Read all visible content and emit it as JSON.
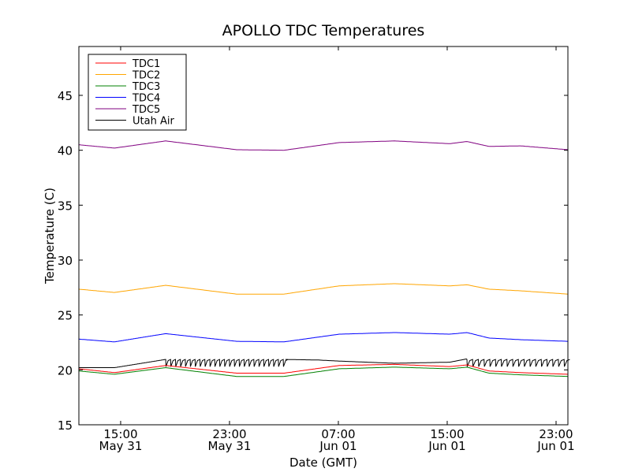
{
  "chart_data": {
    "type": "line",
    "title": "APOLLO TDC Temperatures",
    "xlabel": "Date (GMT)",
    "ylabel": "Temperature (C)",
    "x_units": "hours since May 31 00:00 GMT",
    "xlim": [
      11.93,
      47.87
    ],
    "ylim": [
      15,
      49.45
    ],
    "yticks": [
      15,
      20,
      25,
      30,
      35,
      40,
      45
    ],
    "xticks": [
      {
        "value": 15,
        "time": "15:00",
        "date": "May 31"
      },
      {
        "value": 23,
        "time": "23:00",
        "date": "May 31"
      },
      {
        "value": 31,
        "time": "07:00",
        "date": "Jun 01"
      },
      {
        "value": 39,
        "time": "15:00",
        "date": "Jun 01"
      },
      {
        "value": 47,
        "time": "23:00",
        "date": "Jun 01"
      }
    ],
    "grid": false,
    "legend_position": "top-left",
    "x": [
      11.93,
      14.54,
      18.31,
      23.52,
      27.0,
      31.06,
      35.12,
      39.18,
      40.45,
      42.07,
      44.39,
      47.87
    ],
    "series": [
      {
        "name": "TDC1",
        "color": "#ff0000",
        "values": [
          20.1,
          19.75,
          20.4,
          19.7,
          19.7,
          20.4,
          20.5,
          20.3,
          20.45,
          19.9,
          19.75,
          19.6
        ]
      },
      {
        "name": "TDC2",
        "color": "#ffa500",
        "values": [
          27.35,
          27.05,
          27.7,
          26.9,
          26.9,
          27.65,
          27.85,
          27.65,
          27.75,
          27.35,
          27.2,
          26.9
        ]
      },
      {
        "name": "TDC3",
        "color": "#008000",
        "values": [
          19.9,
          19.6,
          20.2,
          19.4,
          19.4,
          20.1,
          20.25,
          20.1,
          20.25,
          19.7,
          19.55,
          19.4
        ]
      },
      {
        "name": "TDC4",
        "color": "#0000ff",
        "values": [
          22.8,
          22.55,
          23.3,
          22.6,
          22.55,
          23.25,
          23.4,
          23.25,
          23.4,
          22.9,
          22.75,
          22.6
        ]
      },
      {
        "name": "TDC5",
        "color": "#800080",
        "values": [
          40.5,
          40.2,
          40.85,
          40.05,
          40.0,
          40.7,
          40.85,
          40.6,
          40.8,
          40.35,
          40.4,
          40.05
        ]
      },
      {
        "name": "Utah Air",
        "color": "#000000",
        "x": [
          11.93,
          14.54,
          18.31,
          27.0,
          29.5,
          31.06,
          35.12,
          39.18,
          40.45,
          47.87
        ],
        "values": [
          20.2,
          20.2,
          20.95,
          20.95,
          20.9,
          20.8,
          20.6,
          20.7,
          21.0,
          20.95
        ],
        "oscillations": [
          {
            "from": 18.31,
            "to": 27.0,
            "period": 0.36,
            "high": 20.95,
            "low": 20.3
          },
          {
            "from": 40.45,
            "to": 47.87,
            "period": 0.42,
            "high": 20.95,
            "low": 20.3
          }
        ]
      }
    ]
  }
}
